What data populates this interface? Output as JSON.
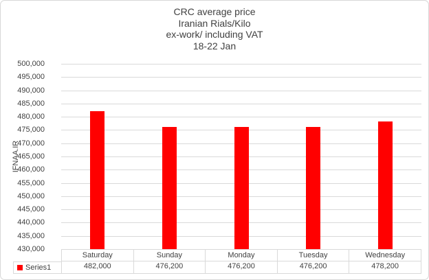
{
  "chart_data": {
    "type": "bar",
    "title_lines": [
      "CRC average price",
      "Iranian Rials/Kilo",
      "ex-work/ including VAT",
      "18-22 Jan"
    ],
    "ylabel": "IFNAA.IR",
    "xlabel": "",
    "categories": [
      "Saturday",
      "Sunday",
      "Monday",
      "Tuesday",
      "Wednesday"
    ],
    "series": [
      {
        "name": "Series1",
        "values": [
          482000,
          476200,
          476200,
          476200,
          478200
        ]
      }
    ],
    "value_labels": [
      "482,000",
      "476,200",
      "476,200",
      "476,200",
      "478,200"
    ],
    "ylim": [
      430000,
      500000
    ],
    "ytick_step": 5000,
    "ytick_labels": [
      "500,000",
      "495,000",
      "490,000",
      "485,000",
      "480,000",
      "475,000",
      "470,000",
      "465,000",
      "460,000",
      "455,000",
      "450,000",
      "445,000",
      "440,000",
      "435,000",
      "430,000"
    ],
    "grid": true,
    "legend_position": "data-table-left",
    "data_table_shown": true,
    "bar_color": "#ff0000",
    "gridline_color": "#d9d9d9",
    "text_color": "#404040",
    "background_color": "#ffffff"
  }
}
